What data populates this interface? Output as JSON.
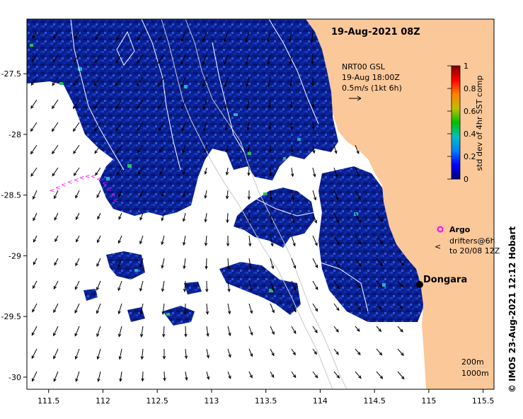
{
  "title": "19-Aug-2021 08Z",
  "wind_legend": {
    "line1": "NRT00 GSL",
    "line2": "19-Aug 18:00Z",
    "line3": "0.5m/s (1kt 6h)"
  },
  "colorbar": {
    "label": "std dev of 4hr SST comp",
    "ticks": [
      "0",
      "0.2",
      "0.4",
      "0.6",
      "0.8",
      "1"
    ],
    "colors": [
      "#000080",
      "#0000ff",
      "#0080ff",
      "#00c0c0",
      "#00c000",
      "#c0c000",
      "#ff8000",
      "#ff0000",
      "#800000"
    ]
  },
  "legend": {
    "argo_label": "Argo",
    "drifters_label_1": "drifters@6h",
    "drifters_label_2": "to 20/08 12Z"
  },
  "place": {
    "name": "Dongara"
  },
  "depth_legend": {
    "line1": "200m",
    "line2": "1000m"
  },
  "axes": {
    "x_ticks": [
      "111.5",
      "112",
      "112.5",
      "113",
      "113.5",
      "114",
      "114.5",
      "115",
      "115.5"
    ],
    "y_ticks": [
      "-27.5",
      "-28",
      "-28.5",
      "-29",
      "-29.5",
      "-30"
    ],
    "x_values": [
      111.5,
      112,
      112.5,
      113,
      113.5,
      114,
      114.5,
      115,
      115.5
    ],
    "y_values": [
      -27.5,
      -28,
      -28.5,
      -29,
      -29.5,
      -30
    ],
    "xlim": [
      111.3,
      115.6
    ],
    "ylim": [
      -30.1,
      -27.05
    ]
  },
  "credit": "© IMOS 23-Aug-2021 12:12 Hobart",
  "colors": {
    "land": "#fbc89a",
    "ocean_data": "#0a1f8f",
    "no_data": "#ffffff",
    "argo": "#ff00ff",
    "drifter": "#ff00ff",
    "place_marker": "#000000"
  }
}
